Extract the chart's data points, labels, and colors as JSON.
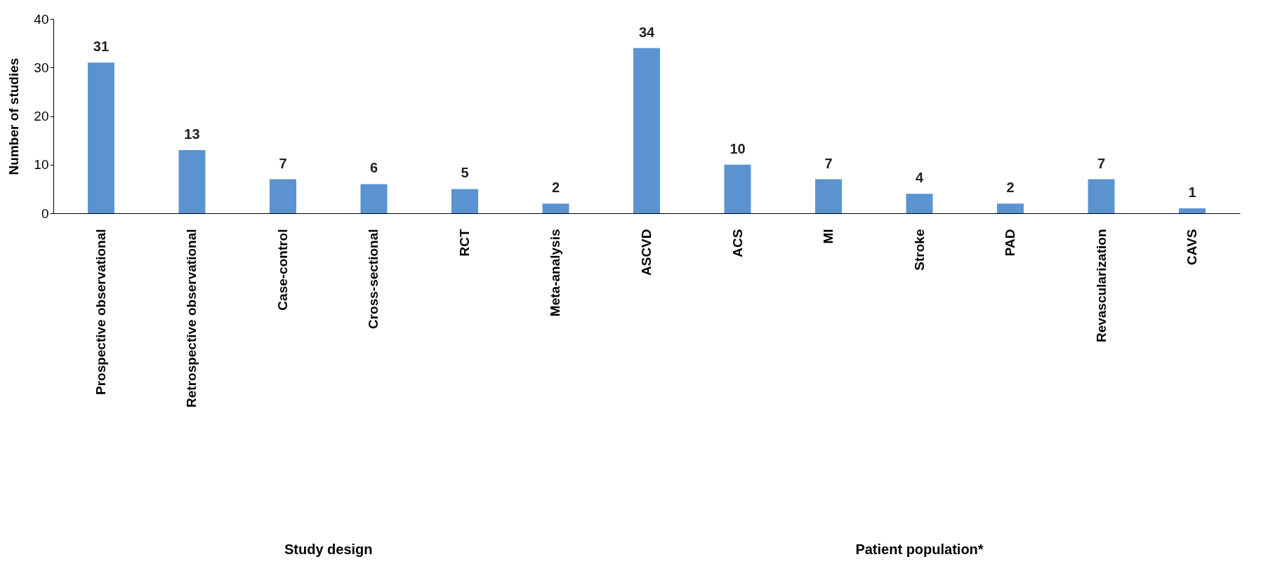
{
  "chart_data": {
    "type": "bar",
    "ylabel": "Number of studies",
    "categories": [
      "Prospective observational",
      "Retrospective observational",
      "Case-control",
      "Cross-sectional",
      "RCT",
      "Meta-analysis",
      "ASCVD",
      "ACS",
      "MI",
      "Stroke",
      "PAD",
      "Revascularization",
      "CAVS"
    ],
    "values": [
      31,
      13,
      7,
      6,
      5,
      2,
      34,
      10,
      7,
      4,
      2,
      7,
      1
    ],
    "color": "#5b93d1",
    "ylim": [
      0,
      40
    ],
    "yticks": [
      0,
      10,
      20,
      30,
      40
    ],
    "grid": false,
    "data_labels": true,
    "annotations": [
      "Study design",
      "Patient population*"
    ]
  }
}
